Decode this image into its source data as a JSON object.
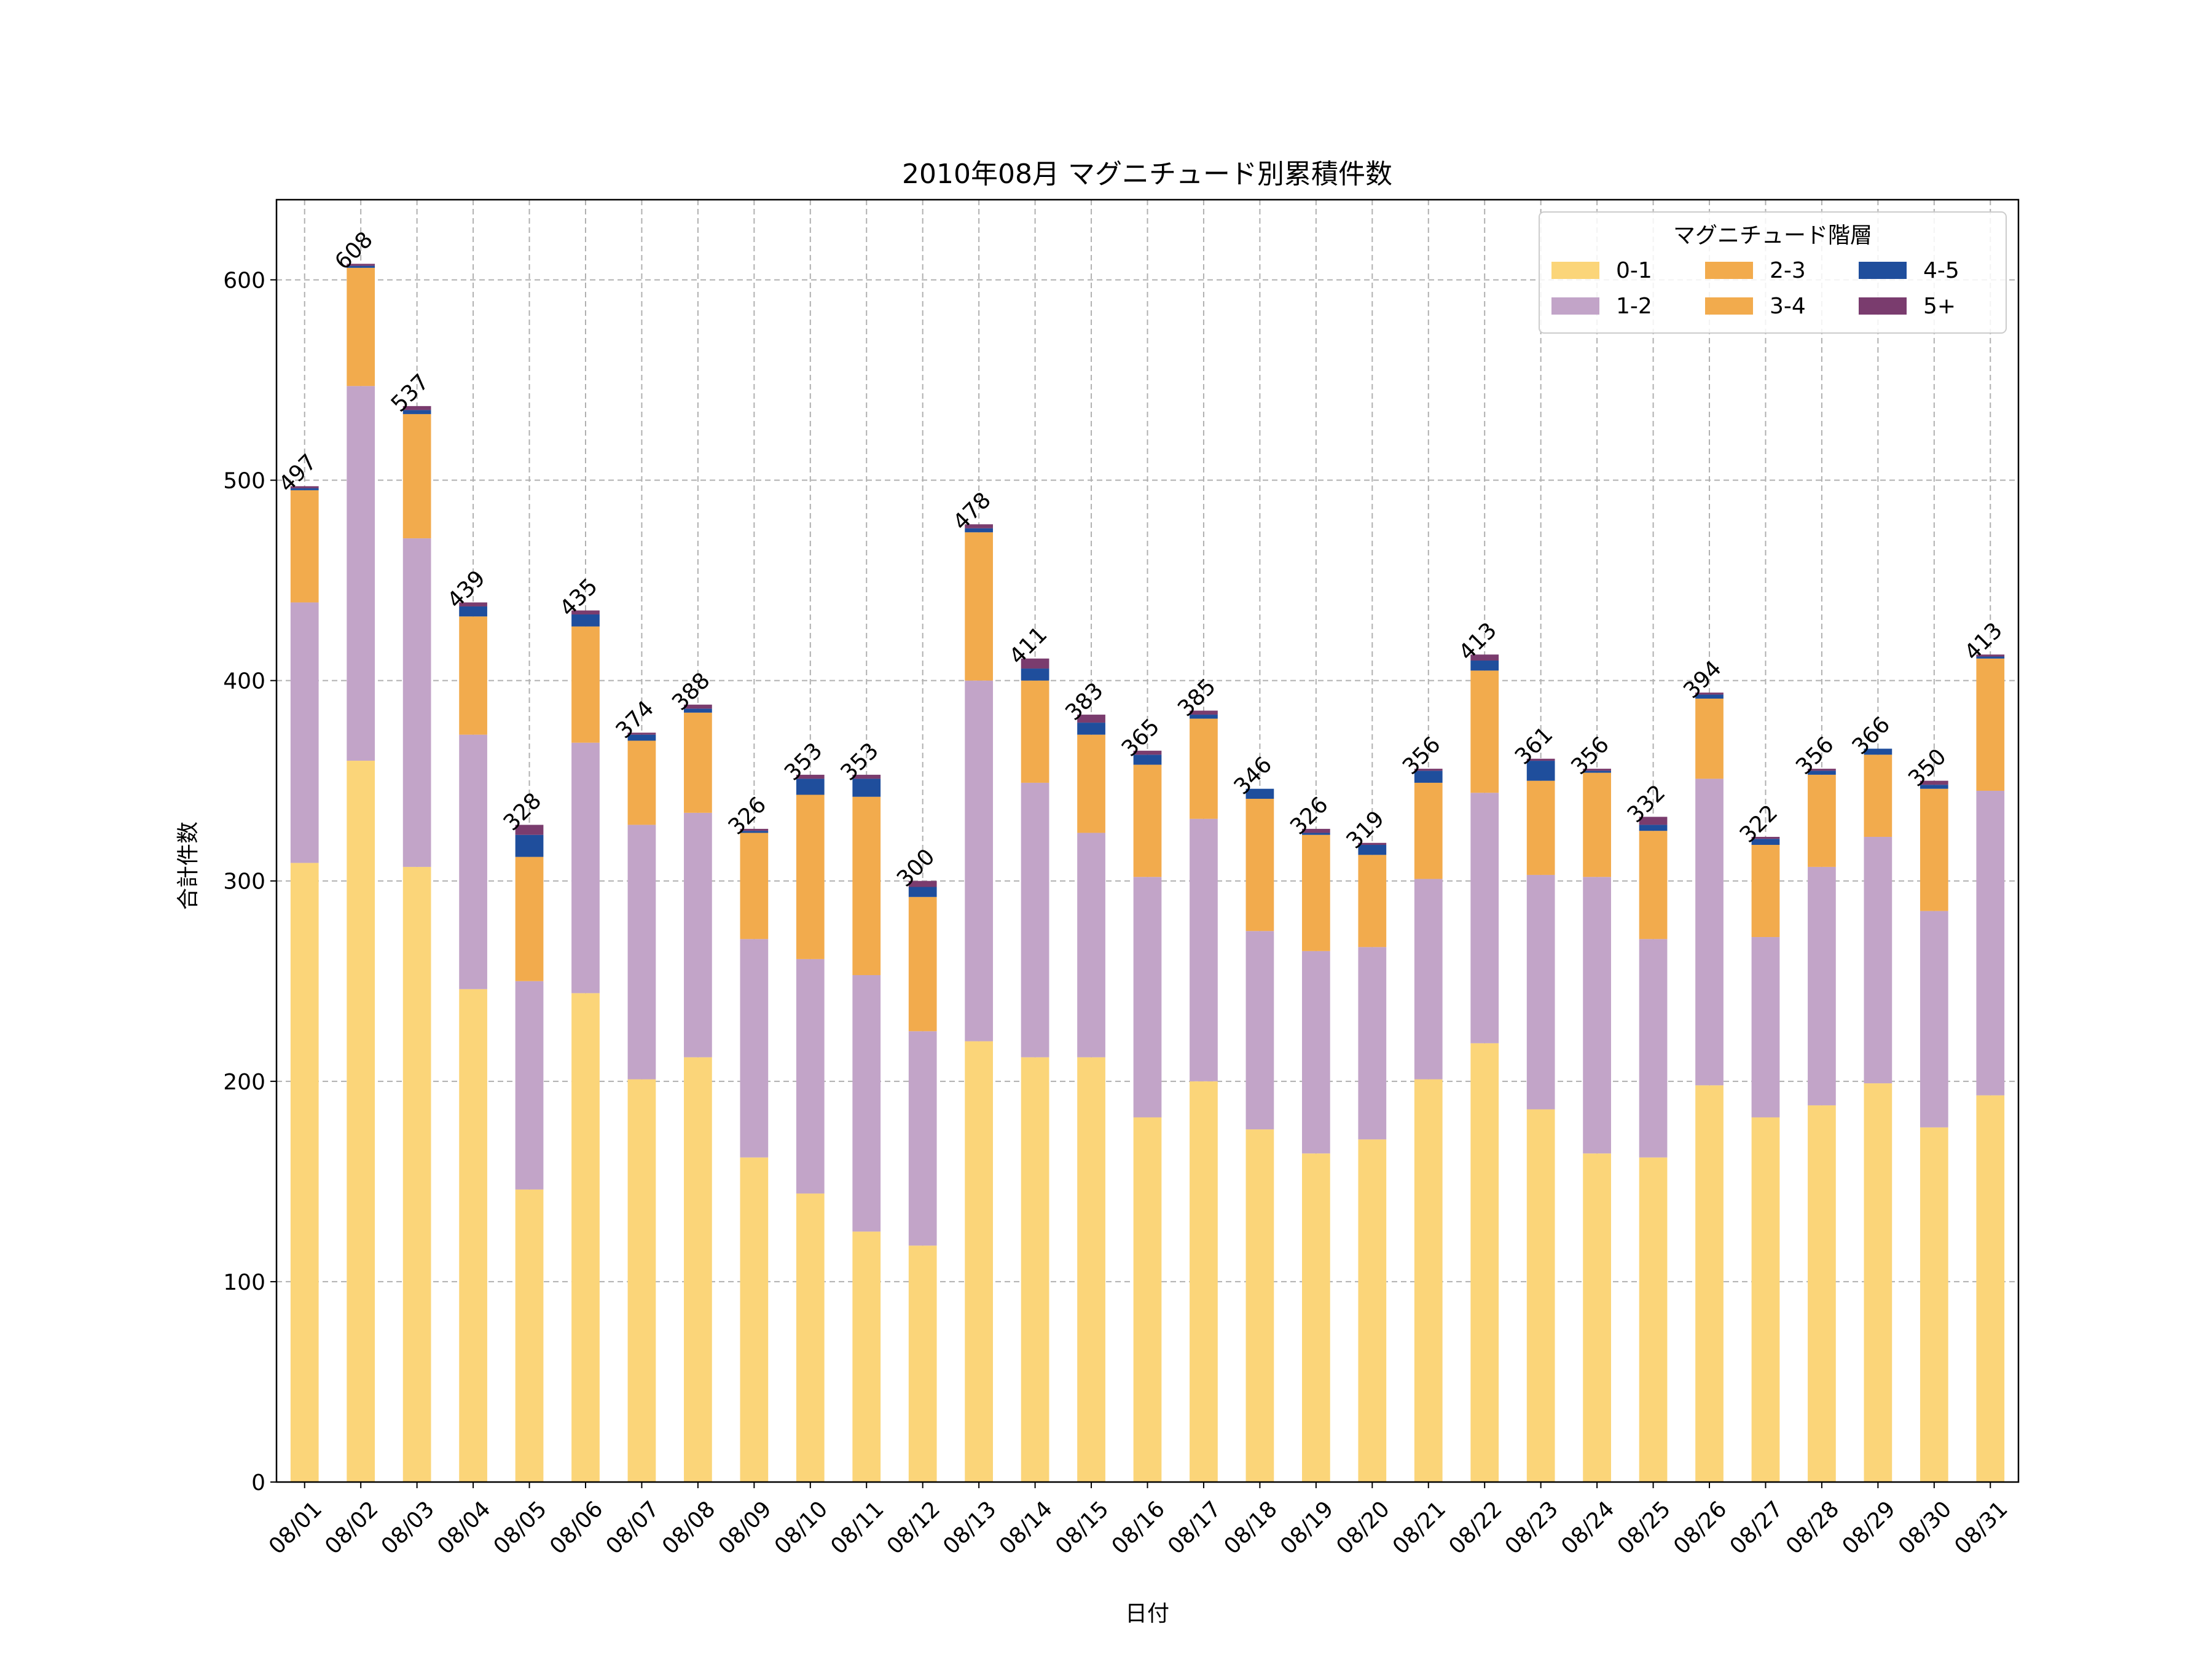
{
  "chart_data": {
    "type": "bar",
    "stacked": true,
    "title": "2010年08月 マグニチュード別累積件数",
    "xlabel": "日付",
    "ylabel": "合計件数",
    "ylim": [
      0,
      640
    ],
    "yticks": [
      0,
      100,
      200,
      300,
      400,
      500,
      600
    ],
    "grid": true,
    "legend_title": "マグニチュード階層",
    "legend_position": "top-right",
    "categories": [
      "08/01",
      "08/02",
      "08/03",
      "08/04",
      "08/05",
      "08/06",
      "08/07",
      "08/08",
      "08/09",
      "08/10",
      "08/11",
      "08/12",
      "08/13",
      "08/14",
      "08/15",
      "08/16",
      "08/17",
      "08/18",
      "08/19",
      "08/20",
      "08/21",
      "08/22",
      "08/23",
      "08/24",
      "08/25",
      "08/26",
      "08/27",
      "08/28",
      "08/29",
      "08/30",
      "08/31"
    ],
    "series": [
      {
        "name": "0-1",
        "color": "#fbd579",
        "values": [
          309,
          360,
          307,
          246,
          146,
          244,
          201,
          212,
          162,
          144,
          125,
          118,
          220,
          212,
          212,
          182,
          200,
          176,
          164,
          171,
          201,
          219,
          186,
          164,
          162,
          198,
          182,
          188,
          199,
          177,
          193
        ]
      },
      {
        "name": "1-2",
        "color": "#c2a4c8",
        "values": [
          130,
          187,
          164,
          127,
          104,
          125,
          127,
          122,
          109,
          117,
          128,
          107,
          180,
          137,
          112,
          120,
          131,
          99,
          101,
          96,
          100,
          125,
          117,
          138,
          109,
          153,
          90,
          119,
          123,
          108,
          152
        ]
      },
      {
        "name": "2-3",
        "color": "#f2ab4d",
        "values": [
          56,
          59,
          62,
          59,
          62,
          58,
          42,
          50,
          53,
          82,
          89,
          67,
          74,
          51,
          49,
          56,
          50,
          66,
          58,
          46,
          48,
          61,
          47,
          52,
          54,
          40,
          46,
          46,
          41,
          61,
          66
        ]
      },
      {
        "name": "3-4",
        "color": "#f2ab4d",
        "values": [
          0,
          0,
          0,
          0,
          0,
          0,
          0,
          0,
          0,
          0,
          0,
          0,
          0,
          0,
          0,
          0,
          0,
          0,
          0,
          0,
          0,
          0,
          0,
          0,
          0,
          0,
          0,
          0,
          0,
          0,
          0
        ]
      },
      {
        "name": "4-5",
        "color": "#1f4e9c",
        "values": [
          1,
          1,
          2,
          5,
          11,
          6,
          3,
          2,
          1,
          8,
          9,
          5,
          2,
          6,
          6,
          5,
          2,
          5,
          1,
          5,
          6,
          5,
          10,
          1,
          3,
          2,
          3,
          2,
          3,
          2,
          1
        ]
      },
      {
        "name": "5+",
        "color": "#7a3c6e",
        "values": [
          1,
          1,
          2,
          2,
          5,
          2,
          1,
          2,
          1,
          2,
          2,
          3,
          2,
          5,
          4,
          2,
          2,
          0,
          2,
          1,
          1,
          3,
          1,
          1,
          4,
          1,
          1,
          1,
          0,
          2,
          1
        ]
      }
    ],
    "totals": [
      497,
      608,
      537,
      439,
      328,
      435,
      374,
      388,
      326,
      353,
      353,
      300,
      478,
      411,
      383,
      365,
      385,
      346,
      326,
      319,
      356,
      413,
      361,
      356,
      332,
      394,
      322,
      356,
      366,
      350,
      413
    ]
  }
}
